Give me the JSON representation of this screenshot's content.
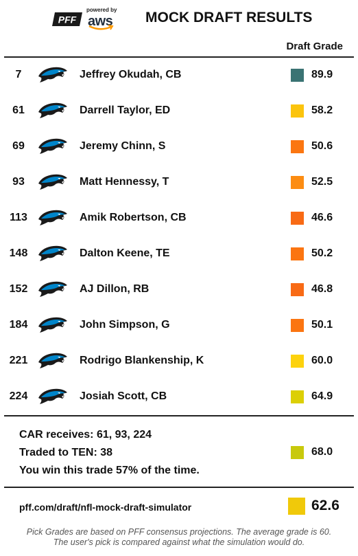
{
  "header": {
    "brand": "PFF",
    "powered_by": "powered by",
    "partner": "aws",
    "title": "MOCK DRAFT RESULTS",
    "grade_column_label": "Draft Grade"
  },
  "picks": [
    {
      "pick": "7",
      "team_icon": "carolina-panthers-icon",
      "player": "Jeffrey Okudah, CB",
      "grade": "89.9",
      "color": "#3a7373"
    },
    {
      "pick": "61",
      "team_icon": "carolina-panthers-icon",
      "player": "Darrell Taylor, ED",
      "grade": "58.2",
      "color": "#fbc40d"
    },
    {
      "pick": "69",
      "team_icon": "carolina-panthers-icon",
      "player": "Jeremy Chinn, S",
      "grade": "50.6",
      "color": "#fb7611"
    },
    {
      "pick": "93",
      "team_icon": "carolina-panthers-icon",
      "player": "Matt Hennessy, T",
      "grade": "52.5",
      "color": "#fc8c12"
    },
    {
      "pick": "113",
      "team_icon": "carolina-panthers-icon",
      "player": "Amik Robertson, CB",
      "grade": "46.6",
      "color": "#f86a15"
    },
    {
      "pick": "148",
      "team_icon": "carolina-panthers-icon",
      "player": "Dalton Keene, TE",
      "grade": "50.2",
      "color": "#fb7511"
    },
    {
      "pick": "152",
      "team_icon": "carolina-panthers-icon",
      "player": "AJ Dillon, RB",
      "grade": "46.8",
      "color": "#f86a15"
    },
    {
      "pick": "184",
      "team_icon": "carolina-panthers-icon",
      "player": "John Simpson, G",
      "grade": "50.1",
      "color": "#fb7511"
    },
    {
      "pick": "221",
      "team_icon": "carolina-panthers-icon",
      "player": "Rodrigo Blankenship, K",
      "grade": "60.0",
      "color": "#fdd20d"
    },
    {
      "pick": "224",
      "team_icon": "carolina-panthers-icon",
      "player": "Josiah Scott, CB",
      "grade": "64.9",
      "color": "#dccf06"
    }
  ],
  "trade": {
    "receives": "CAR receives: 61, 93, 224",
    "traded_to": "Traded to TEN: 38",
    "win_rate": "You win this trade 57% of the time.",
    "grade": "68.0",
    "color": "#c8c90c"
  },
  "footer": {
    "url": "pff.com/draft/nfl-mock-draft-simulator",
    "total_grade": "62.6",
    "total_color": "#f0c90a",
    "note_line1": "Pick Grades are based on PFF consensus projections. The average grade is 60.",
    "note_line2": "The user's pick is compared against what the simulation would do."
  }
}
